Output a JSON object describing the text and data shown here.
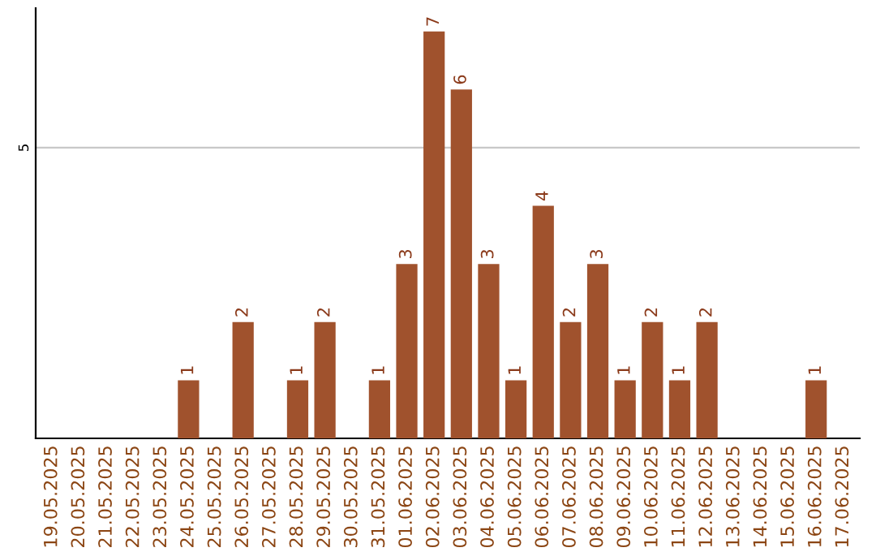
{
  "chart_data": {
    "type": "bar",
    "categories": [
      "19.05.2025",
      "20.05.2025",
      "21.05.2025",
      "22.05.2025",
      "23.05.2025",
      "24.05.2025",
      "25.05.2025",
      "26.05.2025",
      "27.05.2025",
      "28.05.2025",
      "29.05.2025",
      "30.05.2025",
      "31.05.2025",
      "01.06.2025",
      "02.06.2025",
      "03.06.2025",
      "04.06.2025",
      "05.06.2025",
      "06.06.2025",
      "07.06.2025",
      "08.06.2025",
      "09.06.2025",
      "10.06.2025",
      "11.06.2025",
      "12.06.2025",
      "13.06.2025",
      "14.06.2025",
      "15.06.2025",
      "16.06.2025",
      "17.06.2025"
    ],
    "values": [
      0,
      0,
      0,
      0,
      0,
      1,
      0,
      2,
      0,
      1,
      2,
      0,
      1,
      3,
      7,
      6,
      3,
      1,
      4,
      2,
      3,
      1,
      2,
      1,
      2,
      0,
      0,
      0,
      1,
      0
    ],
    "value_labels": [
      null,
      null,
      null,
      null,
      null,
      "1",
      null,
      "2",
      null,
      "1",
      "2",
      null,
      "1",
      "3",
      "7",
      "6",
      "3",
      "1",
      "4",
      "2",
      "3",
      "1",
      "2",
      "1",
      "2",
      null,
      null,
      null,
      "1",
      null
    ],
    "color": "#a0522d",
    "ylim": [
      0,
      7.4
    ],
    "yticks": [
      5
    ],
    "grid": "y"
  }
}
